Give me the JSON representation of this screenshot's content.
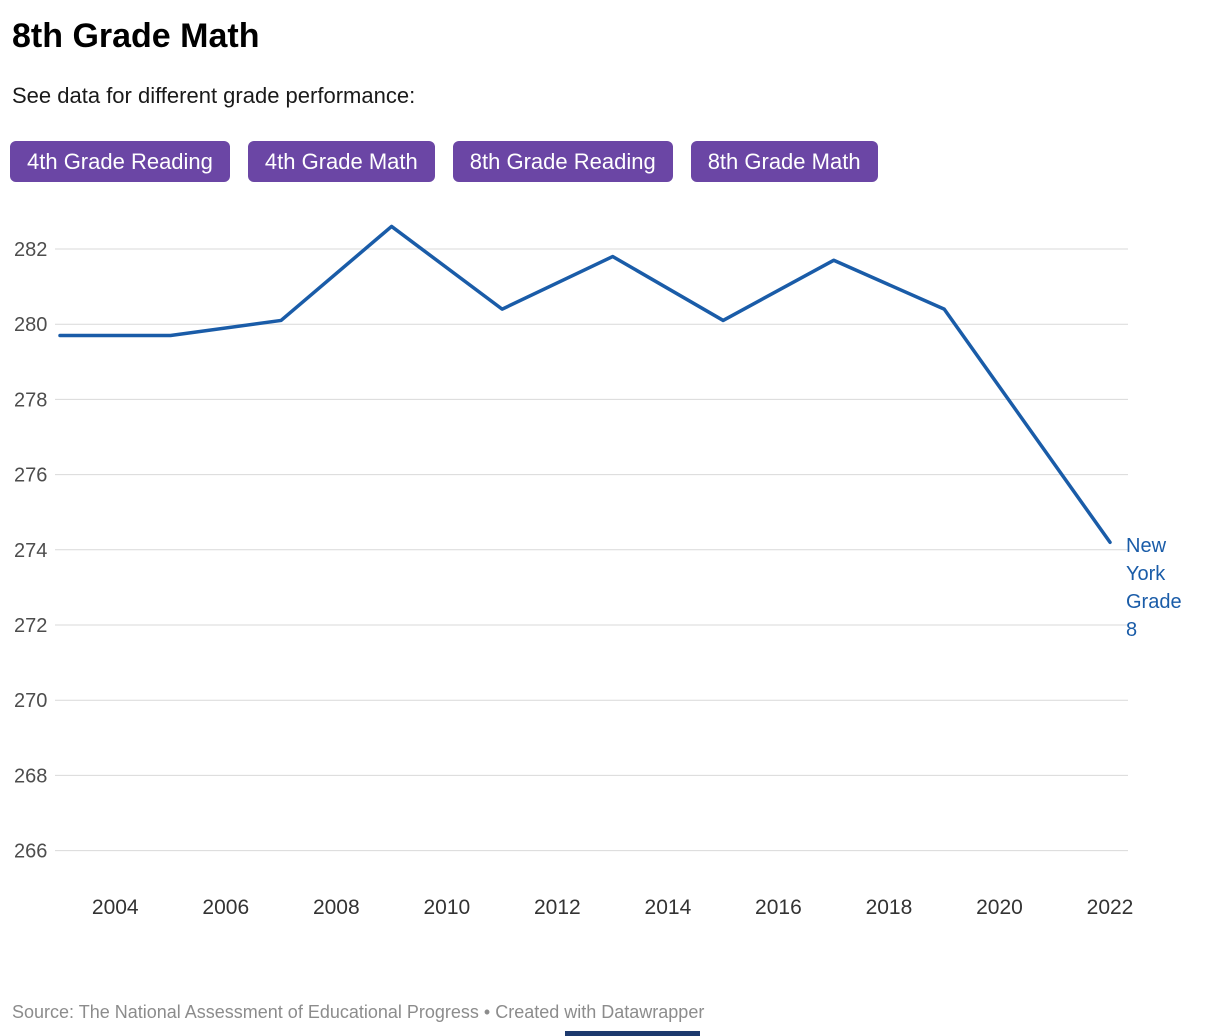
{
  "header": {
    "title": "8th Grade Math",
    "subtitle": "See data for different grade performance:"
  },
  "buttons": [
    {
      "label": "4th Grade Reading"
    },
    {
      "label": "4th Grade Math"
    },
    {
      "label": "8th Grade Reading"
    },
    {
      "label": "8th Grade Math"
    }
  ],
  "chart_data": {
    "type": "line",
    "series": [
      {
        "name": "New York Grade 8",
        "x": [
          2003,
          2005,
          2007,
          2009,
          2011,
          2013,
          2015,
          2017,
          2019,
          2022
        ],
        "values": [
          279.7,
          279.7,
          280.1,
          282.6,
          280.4,
          281.8,
          280.1,
          281.7,
          280.4,
          274.2
        ],
        "color": "#1a5ca8"
      }
    ],
    "x_ticks": [
      2004,
      2006,
      2008,
      2010,
      2012,
      2014,
      2016,
      2018,
      2020,
      2022
    ],
    "y_ticks": [
      266,
      268,
      270,
      272,
      274,
      276,
      278,
      280,
      282
    ],
    "xlim": [
      2003,
      2022
    ],
    "ylim": [
      265,
      283.5
    ],
    "grid": "horizontal",
    "legend_position": "end-of-line"
  },
  "footer": {
    "text": "Source: The National Assessment of Educational Progress • Created with Datawrapper"
  },
  "colors": {
    "accent_purple": "#6b46a5",
    "line_blue": "#1a5ca8",
    "grid": "#d9d9d9",
    "axis_text": "#4d4d4d",
    "x_axis_text": "#333333",
    "footer_text": "#8c8c8c",
    "bottom_bar": "#1d3a6e"
  }
}
